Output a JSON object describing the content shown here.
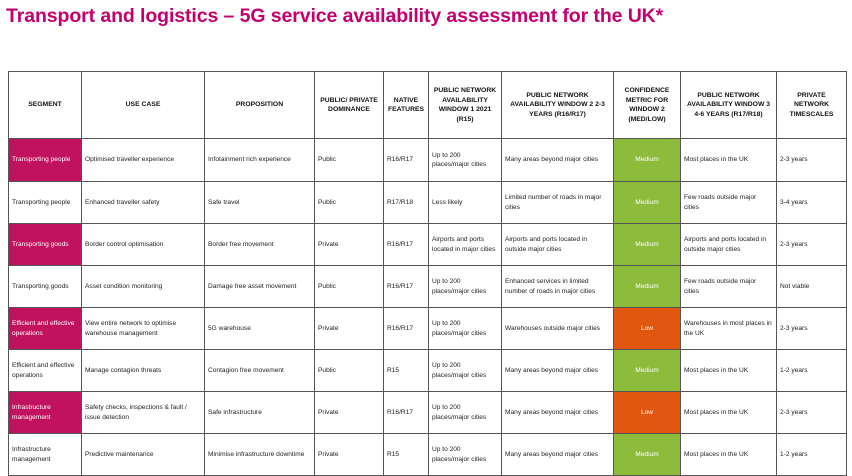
{
  "title": "Transport and logistics – 5G service availability assessment for the UK*",
  "colors": {
    "title": "#c4006e",
    "segment_highlight": "#c0125f",
    "confidence_medium": "#8dbb3c",
    "confidence_low": "#e2570f"
  },
  "headers": {
    "segment": "SEGMENT",
    "use_case": "USE CASE",
    "proposition": "PROPOSITION",
    "dominance": "PUBLIC/ PRIVATE DOMINANCE",
    "native": "NATIVE FEATURES",
    "window1": "PUBLIC NETWORK AVAILABILITY WINDOW 1 2021 (R15)",
    "window2": "PUBLIC NETWORK AVAILABILITY WINDOW 2 2-3 YEARS (R16/R17)",
    "confidence": "CONFIDENCE METRIC FOR WINDOW 2 (MED/LOW)",
    "window3": "PUBLIC NETWORK AVAILABILITY WINDOW 3 4-6 YEARS (R17/R18)",
    "private": "PRIVATE NETWORK TIMESCALES"
  },
  "rows": [
    {
      "segment": "Transporting people",
      "segment_highlight": true,
      "use_case": "Optimised traveller experience",
      "proposition": "Infotainment rich experience",
      "dominance": "Public",
      "native": "R16/R17",
      "window1": "Up to 200 places/major cities",
      "window2": "Many areas beyond major cities",
      "confidence": "Medium",
      "window3": "Most places in the UK",
      "private": "2-3 years"
    },
    {
      "segment": "Transporting people",
      "segment_highlight": false,
      "use_case": "Enhanced traveller safety",
      "proposition": "Safe travel",
      "dominance": "Public",
      "native": "R17/R18",
      "window1": "Less likely",
      "window2": "Limited number of roads in major cities",
      "confidence": "Medium",
      "window3": "Few roads outside major cities",
      "private": "3-4 years"
    },
    {
      "segment": "Transporting goods",
      "segment_highlight": true,
      "use_case": "Border control optimisation",
      "proposition": "Border free movement",
      "dominance": "Private",
      "native": "R16/R17",
      "window1": "Airports and ports located in major cities",
      "window2": "Airports and ports located in outside major cities",
      "confidence": "Medium",
      "window3": "Airports and ports located in outside major cities",
      "private": "2-3 years"
    },
    {
      "segment": "Transporting goods",
      "segment_highlight": false,
      "use_case": "Asset condition monitoring",
      "proposition": "Damage free asset movement",
      "dominance": "Public",
      "native": "R16/R17",
      "window1": "Up to 200 places/major cities",
      "window2": "Enhanced services in limited number of roads in major cities",
      "confidence": "Medium",
      "window3": "Few roads outside major cities",
      "private": "Not viable"
    },
    {
      "segment": "Efficient and effective operations",
      "segment_highlight": true,
      "use_case": "View entire network to optimise warehouse management",
      "proposition": "5G warehouse",
      "dominance": "Private",
      "native": "R16/R17",
      "window1": "Up to 200 places/major cities",
      "window2": "Warehouses outside major cities",
      "confidence": "Low",
      "window3": "Warehouses in most places in the UK",
      "private": "2-3 years"
    },
    {
      "segment": "Efficient and effective operations",
      "segment_highlight": false,
      "use_case": "Manage contagion threats",
      "proposition": "Contagion free movement",
      "dominance": "Public",
      "native": "R15",
      "window1": "Up to 200 places/major cities",
      "window2": "Many areas beyond major cities",
      "confidence": "Medium",
      "window3": "Most places in the UK",
      "private": "1-2 years"
    },
    {
      "segment": "Infrastructure management",
      "segment_highlight": true,
      "use_case": "Safety checks, inspections & fault / issue detection",
      "proposition": "Safe infrastructure",
      "dominance": "Private",
      "native": "R16/R17",
      "window1": "Up to 200 places/major cities",
      "window2": "Many areas beyond major cities",
      "confidence": "Low",
      "window3": "Most places in the UK",
      "private": "2-3 years"
    },
    {
      "segment": "Infrastructure management",
      "segment_highlight": false,
      "use_case": "Predictive maintenance",
      "proposition": "Minimise infrastructure downtime",
      "dominance": "Private",
      "native": "R15",
      "window1": "Up to 200 places/major cities",
      "window2": "Many areas beyond major cities",
      "confidence": "Medium",
      "window3": "Most places in the UK",
      "private": "1-2 years"
    }
  ]
}
